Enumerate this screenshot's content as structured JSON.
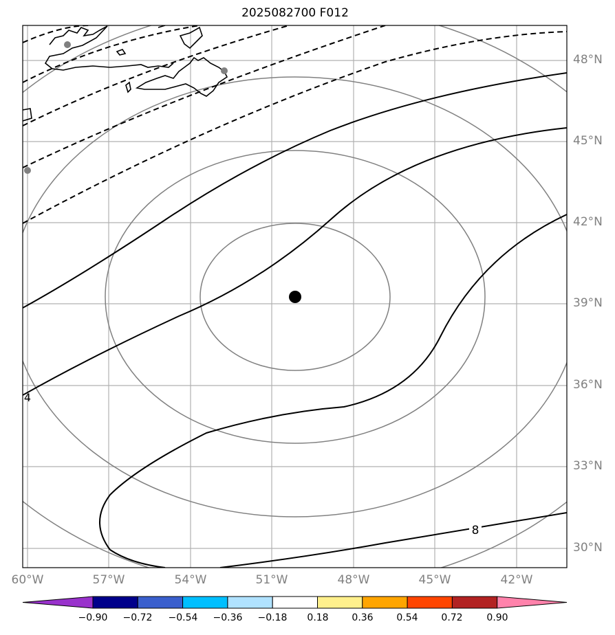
{
  "title": "2025082700 F012",
  "lon_labels": [
    "60°W",
    "57°W",
    "54°W",
    "51°W",
    "48°W",
    "45°W",
    "42°W"
  ],
  "lat_labels": [
    "48°N",
    "45°N",
    "42°N",
    "39°N",
    "36°N",
    "33°N",
    "30°N"
  ],
  "contour_labels": [
    "4",
    "8"
  ],
  "colorbar": {
    "ticks": [
      "−0.90",
      "−0.72",
      "−0.54",
      "−0.36",
      "−0.18",
      "0.18",
      "0.36",
      "0.54",
      "0.72",
      "0.90"
    ],
    "colors": [
      "#9932cc",
      "#00008b",
      "#3a5fcd",
      "#00bfff",
      "#b0e2ff",
      "#ffffff",
      "#fff08c",
      "#ffa500",
      "#ff4500",
      "#b22222",
      "#ff82ab"
    ]
  },
  "center_marker": "storm-center"
}
